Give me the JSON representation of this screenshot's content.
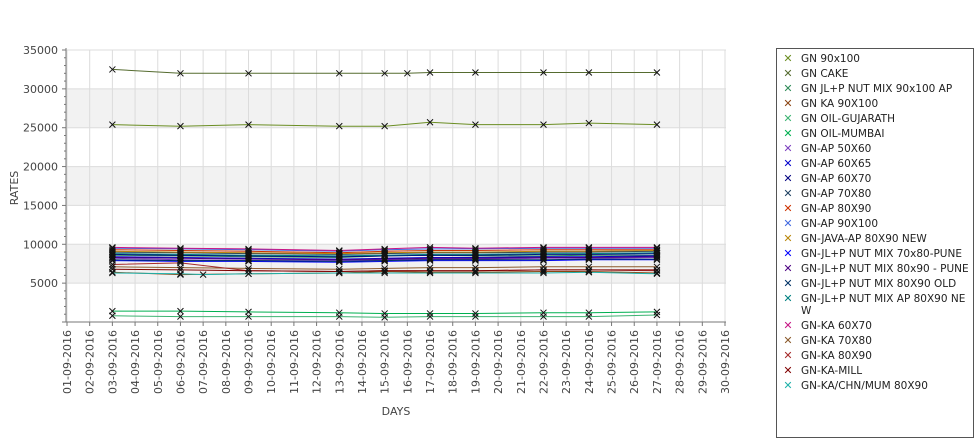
{
  "chart_data": {
    "type": "line",
    "xlabel": "DAYS",
    "ylabel": "RATES",
    "ylim": [
      0,
      35000
    ],
    "yticks": [
      5000,
      10000,
      15000,
      20000,
      25000,
      30000,
      35000
    ],
    "grid": true,
    "legend_position": "right",
    "x_tick_labels": [
      "01-09-2016",
      "02-09-2016",
      "03-09-2016",
      "04-09-2016",
      "05-09-2016",
      "06-09-2016",
      "07-09-2016",
      "08-09-2016",
      "09-09-2016",
      "10-09-2016",
      "11-09-2016",
      "12-09-2016",
      "13-09-2016",
      "14-09-2016",
      "15-09-2016",
      "16-09-2016",
      "17-09-2016",
      "18-09-2016",
      "19-09-2016",
      "20-09-2016",
      "21-09-2016",
      "22-09-2016",
      "23-09-2016",
      "24-09-2016",
      "25-09-2016",
      "26-09-2016",
      "27-09-2016",
      "28-09-2016",
      "29-09-2016",
      "30-09-2016"
    ],
    "series": [
      {
        "name": "GN 90x100",
        "color": "#6b8e23",
        "x": [
          "03-09-2016",
          "06-09-2016",
          "09-09-2016",
          "13-09-2016",
          "15-09-2016",
          "17-09-2016",
          "19-09-2016",
          "22-09-2016",
          "24-09-2016",
          "27-09-2016"
        ],
        "values": [
          25400,
          25200,
          25400,
          25200,
          25200,
          25700,
          25400,
          25400,
          25600,
          25400
        ]
      },
      {
        "name": "GN CAKE",
        "color": "#556b2f",
        "x": [
          "03-09-2016",
          "06-09-2016",
          "09-09-2016",
          "13-09-2016",
          "15-09-2016",
          "16-09-2016",
          "17-09-2016",
          "19-09-2016",
          "22-09-2016",
          "24-09-2016",
          "27-09-2016"
        ],
        "values": [
          32500,
          32000,
          32000,
          32000,
          32000,
          32000,
          32100,
          32100,
          32100,
          32100,
          32100
        ]
      },
      {
        "name": "GN JL+P NUT MIX 90x100 AP",
        "color": "#2e8b57",
        "x": [
          "03-09-2016",
          "06-09-2016",
          "09-09-2016",
          "13-09-2016",
          "15-09-2016",
          "17-09-2016",
          "19-09-2016",
          "22-09-2016",
          "24-09-2016",
          "27-09-2016"
        ],
        "values": [
          8600,
          8500,
          8400,
          8300,
          8500,
          8600,
          8500,
          8500,
          8600,
          8600
        ]
      },
      {
        "name": "GN KA 90X100",
        "color": "#8b4513",
        "x": [
          "03-09-2016",
          "06-09-2016",
          "09-09-2016",
          "13-09-2016",
          "15-09-2016",
          "17-09-2016",
          "19-09-2016",
          "22-09-2016",
          "24-09-2016",
          "27-09-2016"
        ],
        "values": [
          6400,
          6100,
          6200,
          6300,
          6500,
          6400,
          6400,
          6500,
          6500,
          6300
        ]
      },
      {
        "name": "GN OIL-GUJARATH",
        "color": "#3cb371",
        "x": [
          "03-09-2016",
          "06-09-2016",
          "09-09-2016",
          "13-09-2016",
          "15-09-2016",
          "17-09-2016",
          "19-09-2016",
          "22-09-2016",
          "24-09-2016",
          "27-09-2016"
        ],
        "values": [
          800,
          700,
          700,
          700,
          600,
          700,
          700,
          700,
          700,
          900
        ]
      },
      {
        "name": "GN OIL-MUMBAI",
        "color": "#00b050",
        "x": [
          "03-09-2016",
          "06-09-2016",
          "09-09-2016",
          "13-09-2016",
          "15-09-2016",
          "17-09-2016",
          "19-09-2016",
          "22-09-2016",
          "24-09-2016",
          "27-09-2016"
        ],
        "values": [
          1400,
          1400,
          1300,
          1200,
          1100,
          1100,
          1100,
          1200,
          1200,
          1300
        ]
      },
      {
        "name": "GN-AP 50X60",
        "color": "#7b3fbf",
        "x": [
          "03-09-2016",
          "06-09-2016",
          "09-09-2016",
          "13-09-2016",
          "15-09-2016",
          "17-09-2016",
          "19-09-2016",
          "22-09-2016",
          "24-09-2016",
          "27-09-2016"
        ],
        "values": [
          8200,
          8000,
          7900,
          7900,
          8000,
          8100,
          8100,
          8200,
          8200,
          8300
        ]
      },
      {
        "name": "GN-AP 60X65",
        "color": "#0000cd",
        "x": [
          "03-09-2016",
          "06-09-2016",
          "09-09-2016",
          "13-09-2016",
          "15-09-2016",
          "17-09-2016",
          "19-09-2016",
          "22-09-2016",
          "24-09-2016",
          "27-09-2016"
        ],
        "values": [
          8400,
          8300,
          8200,
          8100,
          8200,
          8300,
          8300,
          8400,
          8400,
          8500
        ]
      },
      {
        "name": "GN-AP 60X70",
        "color": "#000080",
        "x": [
          "03-09-2016",
          "06-09-2016",
          "09-09-2016",
          "13-09-2016",
          "15-09-2016",
          "17-09-2016",
          "19-09-2016",
          "22-09-2016",
          "24-09-2016",
          "27-09-2016"
        ],
        "values": [
          8700,
          8600,
          8500,
          8400,
          8500,
          8600,
          8600,
          8700,
          8700,
          8800
        ]
      },
      {
        "name": "GN-AP 70X80",
        "color": "#1c3f5f",
        "x": [
          "03-09-2016",
          "06-09-2016",
          "09-09-2016",
          "13-09-2016",
          "15-09-2016",
          "17-09-2016",
          "19-09-2016",
          "22-09-2016",
          "24-09-2016",
          "27-09-2016"
        ],
        "values": [
          9000,
          8900,
          8800,
          8700,
          8800,
          8900,
          8900,
          9000,
          9000,
          9100
        ]
      },
      {
        "name": "GN-AP 80X90",
        "color": "#cc3300",
        "x": [
          "03-09-2016",
          "06-09-2016",
          "09-09-2016",
          "13-09-2016",
          "15-09-2016",
          "17-09-2016",
          "19-09-2016",
          "22-09-2016",
          "24-09-2016",
          "27-09-2016"
        ],
        "values": [
          9300,
          9200,
          9100,
          8900,
          9100,
          9200,
          9200,
          9300,
          9300,
          9300
        ]
      },
      {
        "name": "GN-AP 90X100",
        "color": "#4169e1",
        "x": [
          "03-09-2016",
          "06-09-2016",
          "09-09-2016",
          "13-09-2016",
          "15-09-2016",
          "17-09-2016",
          "19-09-2016",
          "22-09-2016",
          "24-09-2016",
          "27-09-2016"
        ],
        "values": [
          9500,
          9400,
          9300,
          9100,
          9300,
          9400,
          9400,
          9500,
          9500,
          9500
        ]
      },
      {
        "name": "GN-JAVA-AP 80X90 NEW",
        "color": "#b8860b",
        "x": [
          "03-09-2016",
          "06-09-2016",
          "09-09-2016",
          "13-09-2016",
          "15-09-2016",
          "17-09-2016",
          "19-09-2016",
          "22-09-2016",
          "24-09-2016",
          "27-09-2016"
        ],
        "values": [
          9100,
          9000,
          8900,
          8800,
          8900,
          9000,
          9000,
          9100,
          9100,
          9200
        ]
      },
      {
        "name": "GN-JL+P NUT MIX 70x80-PUNE",
        "color": "#0000ff",
        "x": [
          "03-09-2016",
          "06-09-2016",
          "09-09-2016",
          "13-09-2016",
          "15-09-2016",
          "17-09-2016",
          "19-09-2016",
          "22-09-2016",
          "24-09-2016",
          "27-09-2016"
        ],
        "values": [
          7900,
          7800,
          7800,
          7700,
          7800,
          7900,
          7900,
          7900,
          8000,
          8000
        ]
      },
      {
        "name": "GN-JL+P NUT MIX 80x90 - PUNE",
        "color": "#4b0082",
        "x": [
          "03-09-2016",
          "06-09-2016",
          "09-09-2016",
          "13-09-2016",
          "15-09-2016",
          "17-09-2016",
          "19-09-2016",
          "22-09-2016",
          "24-09-2016",
          "27-09-2016"
        ],
        "values": [
          8300,
          8200,
          8100,
          8000,
          8100,
          8200,
          8200,
          8300,
          8300,
          8400
        ]
      },
      {
        "name": "GN-JL+P NUT MIX 80X90 OLD",
        "color": "#003366",
        "x": [
          "03-09-2016",
          "06-09-2016",
          "09-09-2016",
          "13-09-2016",
          "15-09-2016",
          "17-09-2016",
          "19-09-2016",
          "22-09-2016",
          "24-09-2016",
          "27-09-2016"
        ],
        "values": [
          8000,
          7900,
          7900,
          7800,
          7900,
          8000,
          8000,
          8000,
          8100,
          8100
        ]
      },
      {
        "name": "GN-JL+P NUT MIX AP 80X90 NEW",
        "color": "#008080",
        "x": [
          "03-09-2016",
          "06-09-2016",
          "09-09-2016",
          "13-09-2016",
          "15-09-2016",
          "17-09-2016",
          "19-09-2016",
          "22-09-2016",
          "24-09-2016",
          "27-09-2016"
        ],
        "values": [
          8800,
          8700,
          8600,
          8500,
          8600,
          8700,
          8700,
          8800,
          8800,
          8900
        ]
      },
      {
        "name": "GN-KA 60X70",
        "color": "#c71585",
        "x": [
          "03-09-2016",
          "06-09-2016",
          "09-09-2016",
          "13-09-2016",
          "15-09-2016",
          "17-09-2016",
          "19-09-2016",
          "22-09-2016",
          "24-09-2016",
          "27-09-2016"
        ],
        "values": [
          9600,
          9500,
          9400,
          9200,
          9400,
          9600,
          9500,
          9600,
          9600,
          9600
        ]
      },
      {
        "name": "GN-KA 70X80",
        "color": "#8b5a2b",
        "x": [
          "03-09-2016",
          "06-09-2016",
          "09-09-2016",
          "13-09-2016",
          "15-09-2016",
          "17-09-2016",
          "19-09-2016",
          "22-09-2016",
          "24-09-2016",
          "27-09-2016"
        ],
        "values": [
          7100,
          7000,
          6900,
          6800,
          6900,
          7000,
          7000,
          7100,
          7100,
          7100
        ]
      },
      {
        "name": "GN-KA 80X90",
        "color": "#a52a2a",
        "x": [
          "03-09-2016",
          "06-09-2016",
          "09-09-2016",
          "13-09-2016",
          "15-09-2016",
          "17-09-2016",
          "19-09-2016",
          "22-09-2016",
          "24-09-2016",
          "27-09-2016"
        ],
        "values": [
          7400,
          7600,
          6600,
          6500,
          6600,
          6600,
          6600,
          6700,
          6700,
          6600
        ]
      },
      {
        "name": "GN-KA-MILL",
        "color": "#800000",
        "x": [
          "03-09-2016",
          "06-09-2016",
          "09-09-2016",
          "13-09-2016",
          "15-09-2016",
          "17-09-2016",
          "19-09-2016",
          "22-09-2016",
          "24-09-2016",
          "27-09-2016"
        ],
        "values": [
          6800,
          6700,
          6600,
          6500,
          6600,
          6600,
          6600,
          6700,
          6700,
          6700
        ]
      },
      {
        "name": "GN-KA/CHN/MUM 80X90",
        "color": "#20b2aa",
        "x": [
          "03-09-2016",
          "06-09-2016",
          "07-09-2016",
          "09-09-2016",
          "13-09-2016",
          "15-09-2016",
          "17-09-2016",
          "19-09-2016",
          "22-09-2016",
          "24-09-2016",
          "27-09-2016"
        ],
        "values": [
          6300,
          6200,
          6100,
          6200,
          6300,
          6300,
          6300,
          6300,
          6300,
          6400,
          6200
        ]
      }
    ]
  }
}
